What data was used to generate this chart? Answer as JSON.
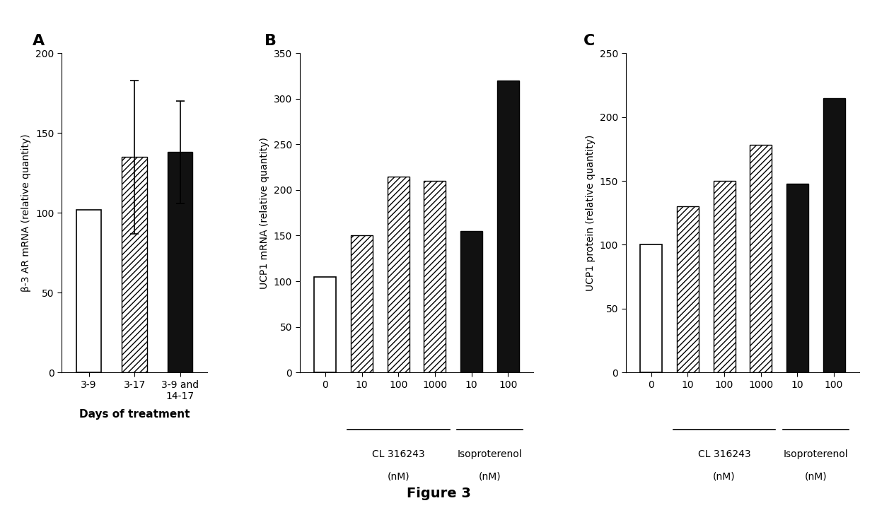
{
  "panel_A": {
    "label": "A",
    "categories": [
      "3-9",
      "3-17",
      "3-9 and\n14-17"
    ],
    "values": [
      102,
      135,
      138
    ],
    "errors": [
      0,
      48,
      32
    ],
    "bar_styles": [
      "white",
      "hatch",
      "black"
    ],
    "ylabel": "β-3 AR mRNA (relative quantity)",
    "xlabel": "Days of treatment",
    "ylim": [
      0,
      200
    ],
    "yticks": [
      0,
      50,
      100,
      150,
      200
    ]
  },
  "panel_B": {
    "label": "B",
    "categories": [
      "0",
      "10",
      "100",
      "1000",
      "10",
      "100"
    ],
    "values": [
      105,
      150,
      215,
      210,
      155,
      320
    ],
    "bar_styles": [
      "white",
      "hatch",
      "hatch",
      "hatch",
      "black",
      "black"
    ],
    "ylabel": "UCP1 mRNA (relative quantity)",
    "group1_label": "CL 316243",
    "group1_unit": "(nM)",
    "group2_label": "Isoproterenol",
    "group2_unit": "(nM)",
    "ylim": [
      0,
      350
    ],
    "yticks": [
      0,
      50,
      100,
      150,
      200,
      250,
      300,
      350
    ]
  },
  "panel_C": {
    "label": "C",
    "categories": [
      "0",
      "10",
      "100",
      "1000",
      "10",
      "100"
    ],
    "values": [
      100,
      130,
      150,
      178,
      148,
      215
    ],
    "bar_styles": [
      "white",
      "hatch",
      "hatch",
      "hatch",
      "black",
      "black"
    ],
    "ylabel": "UCP1 protein (relative quantity)",
    "group1_label": "CL 316243",
    "group1_unit": "(nM)",
    "group2_label": "Isoproterenol",
    "group2_unit": "(nM)",
    "ylim": [
      0,
      250
    ],
    "yticks": [
      0,
      50,
      100,
      150,
      200,
      250
    ]
  },
  "figure_title": "Figure 3",
  "bg_color": "#ffffff",
  "bar_color_white": "#ffffff",
  "bar_color_black": "#111111",
  "hatch_pattern": "////"
}
